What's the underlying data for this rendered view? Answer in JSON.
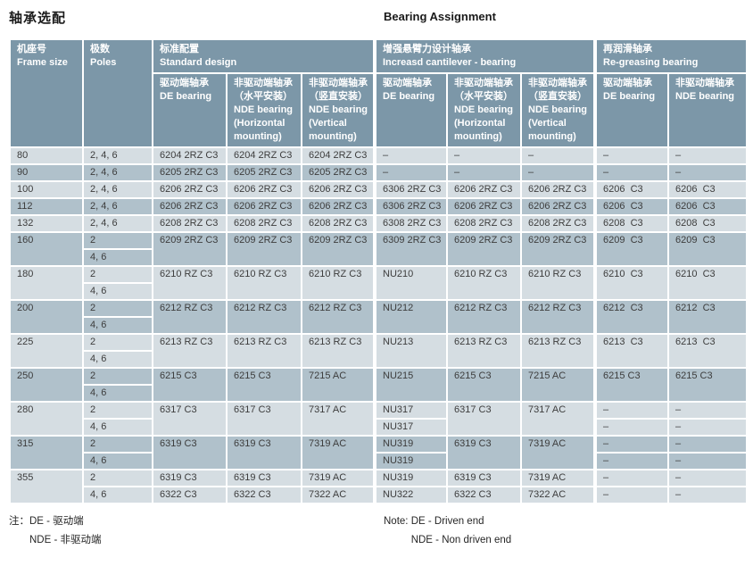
{
  "page": {
    "title_zh": "轴承选配",
    "title_en": "Bearing Assignment"
  },
  "colors": {
    "header_bg": "#7c97a8",
    "row_light": "#d5dde2",
    "row_dark": "#b0c1cb",
    "grid": "#ffffff",
    "text_body": "#3d3d3d",
    "text_header": "#ffffff"
  },
  "header": {
    "frame": "机座号\nFrame size",
    "poles": "极数\nPoles",
    "groups": [
      {
        "title": "标准配置\nStandard design",
        "cols": [
          "驱动端轴承\nDE bearing",
          "非驱动端轴承\n（水平安装）\nNDE bearing\n(Horizontal\nmounting)",
          "非驱动端轴承\n（竖直安装）\nNDE bearing\n(Vertical\nmounting)"
        ]
      },
      {
        "title": "增强悬臂力设计轴承\nIncreasd cantilever - bearing",
        "cols": [
          "驱动端轴承\nDE bearing",
          "非驱动端轴承\n（水平安装）\nNDE bearing\n(Horizontal\nmounting)",
          "非驱动端轴承\n（竖直安装）\nNDE bearing\n(Vertical\nmounting)"
        ]
      },
      {
        "title": "再润滑轴承\nRe-greasing bearing",
        "cols": [
          "驱动端轴承\nDE bearing",
          "非驱动端轴承\nNDE bearing"
        ]
      }
    ]
  },
  "body": {
    "row_groups": [
      {
        "frame": "80",
        "shade": "light",
        "rows": [
          {
            "poles": "2, 4, 6",
            "cells": [
              {
                "t": "6204 2RZ C3"
              },
              {
                "t": "6204 2RZ C3"
              },
              {
                "t": "6204 2RZ C3"
              },
              {
                "t": "–",
                "gs": 1
              },
              {
                "t": "–"
              },
              {
                "t": "–"
              },
              {
                "t": "–",
                "gs": 1
              },
              {
                "t": "–"
              }
            ]
          }
        ]
      },
      {
        "frame": "90",
        "shade": "dark",
        "rows": [
          {
            "poles": "2, 4, 6",
            "cells": [
              {
                "t": "6205 2RZ C3"
              },
              {
                "t": "6205 2RZ C3"
              },
              {
                "t": "6205 2RZ C3"
              },
              {
                "t": "–",
                "gs": 1
              },
              {
                "t": "–"
              },
              {
                "t": "–"
              },
              {
                "t": "–",
                "gs": 1
              },
              {
                "t": "–"
              }
            ]
          }
        ]
      },
      {
        "frame": "100",
        "shade": "light",
        "rows": [
          {
            "poles": "2, 4, 6",
            "cells": [
              {
                "t": "6206 2RZ C3"
              },
              {
                "t": "6206 2RZ C3"
              },
              {
                "t": "6206 2RZ C3"
              },
              {
                "t": "6306 2RZ C3",
                "gs": 1
              },
              {
                "t": "6206 2RZ C3"
              },
              {
                "t": "6206 2RZ C3"
              },
              {
                "t": "6206  C3",
                "gs": 1
              },
              {
                "t": "6206  C3"
              }
            ]
          }
        ]
      },
      {
        "frame": "112",
        "shade": "dark",
        "rows": [
          {
            "poles": "2, 4, 6",
            "cells": [
              {
                "t": "6206 2RZ C3"
              },
              {
                "t": "6206 2RZ C3"
              },
              {
                "t": "6206 2RZ C3"
              },
              {
                "t": "6306 2RZ C3",
                "gs": 1
              },
              {
                "t": "6206 2RZ C3"
              },
              {
                "t": "6206 2RZ C3"
              },
              {
                "t": "6206  C3",
                "gs": 1
              },
              {
                "t": "6206  C3"
              }
            ]
          }
        ]
      },
      {
        "frame": "132",
        "shade": "light",
        "rows": [
          {
            "poles": "2, 4, 6",
            "cells": [
              {
                "t": "6208 2RZ C3"
              },
              {
                "t": "6208 2RZ C3"
              },
              {
                "t": "6208 2RZ C3"
              },
              {
                "t": "6308 2RZ C3",
                "gs": 1
              },
              {
                "t": "6208 2RZ C3"
              },
              {
                "t": "6208 2RZ C3"
              },
              {
                "t": "6208  C3",
                "gs": 1
              },
              {
                "t": "6208  C3"
              }
            ]
          }
        ]
      },
      {
        "frame": "160",
        "shade": "dark",
        "rows": [
          {
            "poles": "2",
            "cells": [
              {
                "t": "6209 2RZ C3",
                "rs": 2
              },
              {
                "t": "6209 2RZ C3",
                "rs": 2
              },
              {
                "t": "6209 2RZ C3",
                "rs": 2
              },
              {
                "t": "6309 2RZ C3",
                "rs": 2,
                "gs": 1
              },
              {
                "t": "6209 2RZ C3",
                "rs": 2
              },
              {
                "t": "6209 2RZ C3",
                "rs": 2
              },
              {
                "t": "6209  C3",
                "rs": 2,
                "gs": 1
              },
              {
                "t": "6209  C3",
                "rs": 2
              }
            ]
          },
          {
            "poles": "4, 6",
            "cells": []
          }
        ]
      },
      {
        "frame": "180",
        "shade": "light",
        "rows": [
          {
            "poles": "2",
            "cells": [
              {
                "t": "6210 RZ C3",
                "rs": 2
              },
              {
                "t": "6210 RZ C3",
                "rs": 2
              },
              {
                "t": "6210 RZ C3",
                "rs": 2
              },
              {
                "t": "NU210",
                "rs": 2,
                "gs": 1
              },
              {
                "t": "6210 RZ C3",
                "rs": 2
              },
              {
                "t": "6210 RZ C3",
                "rs": 2
              },
              {
                "t": "6210  C3",
                "rs": 2,
                "gs": 1
              },
              {
                "t": "6210  C3",
                "rs": 2
              }
            ]
          },
          {
            "poles": "4, 6",
            "cells": []
          }
        ]
      },
      {
        "frame": "200",
        "shade": "dark",
        "rows": [
          {
            "poles": "2",
            "cells": [
              {
                "t": "6212 RZ C3",
                "rs": 2
              },
              {
                "t": "6212 RZ C3",
                "rs": 2
              },
              {
                "t": "6212 RZ C3",
                "rs": 2
              },
              {
                "t": "NU212",
                "rs": 2,
                "gs": 1
              },
              {
                "t": "6212 RZ C3",
                "rs": 2
              },
              {
                "t": "6212 RZ C3",
                "rs": 2
              },
              {
                "t": "6212  C3",
                "rs": 2,
                "gs": 1
              },
              {
                "t": "6212  C3",
                "rs": 2
              }
            ]
          },
          {
            "poles": "4, 6",
            "cells": []
          }
        ]
      },
      {
        "frame": "225",
        "shade": "light",
        "rows": [
          {
            "poles": "2",
            "cells": [
              {
                "t": "6213 RZ C3",
                "rs": 2
              },
              {
                "t": "6213 RZ C3",
                "rs": 2
              },
              {
                "t": "6213 RZ C3",
                "rs": 2
              },
              {
                "t": "NU213",
                "rs": 2,
                "gs": 1
              },
              {
                "t": "6213 RZ C3",
                "rs": 2
              },
              {
                "t": "6213 RZ C3",
                "rs": 2
              },
              {
                "t": "6213  C3",
                "rs": 2,
                "gs": 1
              },
              {
                "t": "6213  C3",
                "rs": 2
              }
            ]
          },
          {
            "poles": "4, 6",
            "cells": []
          }
        ]
      },
      {
        "frame": "250",
        "shade": "dark",
        "rows": [
          {
            "poles": "2",
            "cells": [
              {
                "t": "6215 C3",
                "rs": 2
              },
              {
                "t": "6215 C3",
                "rs": 2
              },
              {
                "t": "7215 AC",
                "rs": 2
              },
              {
                "t": "NU215",
                "rs": 2,
                "gs": 1
              },
              {
                "t": "6215 C3",
                "rs": 2
              },
              {
                "t": "7215 AC",
                "rs": 2
              },
              {
                "t": "6215 C3",
                "rs": 2,
                "gs": 1
              },
              {
                "t": "6215 C3",
                "rs": 2
              }
            ]
          },
          {
            "poles": "4, 6",
            "cells": []
          }
        ]
      },
      {
        "frame": "280",
        "shade": "light",
        "rows": [
          {
            "poles": "2",
            "cells": [
              {
                "t": "6317 C3",
                "rs": 2
              },
              {
                "t": "6317 C3",
                "rs": 2
              },
              {
                "t": "7317 AC",
                "rs": 2
              },
              {
                "t": "NU317",
                "gs": 1
              },
              {
                "t": "6317 C3",
                "rs": 2
              },
              {
                "t": "7317 AC",
                "rs": 2
              },
              {
                "t": "–",
                "gs": 1
              },
              {
                "t": "–"
              }
            ]
          },
          {
            "poles": "4, 6",
            "cells": [
              {
                "t": "NU317",
                "gs": 1
              },
              {
                "t": "–",
                "gs": 1
              },
              {
                "t": "–"
              }
            ]
          }
        ]
      },
      {
        "frame": "315",
        "shade": "dark",
        "rows": [
          {
            "poles": "2",
            "cells": [
              {
                "t": "6319 C3",
                "rs": 2
              },
              {
                "t": "6319 C3",
                "rs": 2
              },
              {
                "t": "7319 AC",
                "rs": 2
              },
              {
                "t": "NU319",
                "gs": 1
              },
              {
                "t": "6319 C3",
                "rs": 2
              },
              {
                "t": "7319 AC",
                "rs": 2
              },
              {
                "t": "–",
                "gs": 1
              },
              {
                "t": "–"
              }
            ]
          },
          {
            "poles": "4, 6",
            "cells": [
              {
                "t": "NU319",
                "gs": 1
              },
              {
                "t": "–",
                "gs": 1
              },
              {
                "t": "–"
              }
            ]
          }
        ]
      },
      {
        "frame": "355",
        "shade": "light",
        "rows": [
          {
            "poles": "2",
            "cells": [
              {
                "t": "6319 C3"
              },
              {
                "t": "6319 C3"
              },
              {
                "t": "7319 AC"
              },
              {
                "t": "NU319",
                "gs": 1
              },
              {
                "t": "6319 C3"
              },
              {
                "t": "7319 AC"
              },
              {
                "t": "–",
                "gs": 1
              },
              {
                "t": "–"
              }
            ]
          },
          {
            "poles": "4, 6",
            "cells": [
              {
                "t": "6322 C3"
              },
              {
                "t": "6322 C3"
              },
              {
                "t": "7322 AC"
              },
              {
                "t": "NU322",
                "gs": 1
              },
              {
                "t": "6322 C3"
              },
              {
                "t": "7322 AC"
              },
              {
                "t": "–",
                "gs": 1
              },
              {
                "t": "–"
              }
            ]
          }
        ]
      }
    ]
  },
  "notes": {
    "zh": {
      "label": "注：",
      "line1": "DE - 驱动端",
      "line2": "NDE - 非驱动端"
    },
    "en": {
      "label": "Note: ",
      "line1": "DE - Driven end",
      "line2": "NDE - Non driven end"
    }
  }
}
